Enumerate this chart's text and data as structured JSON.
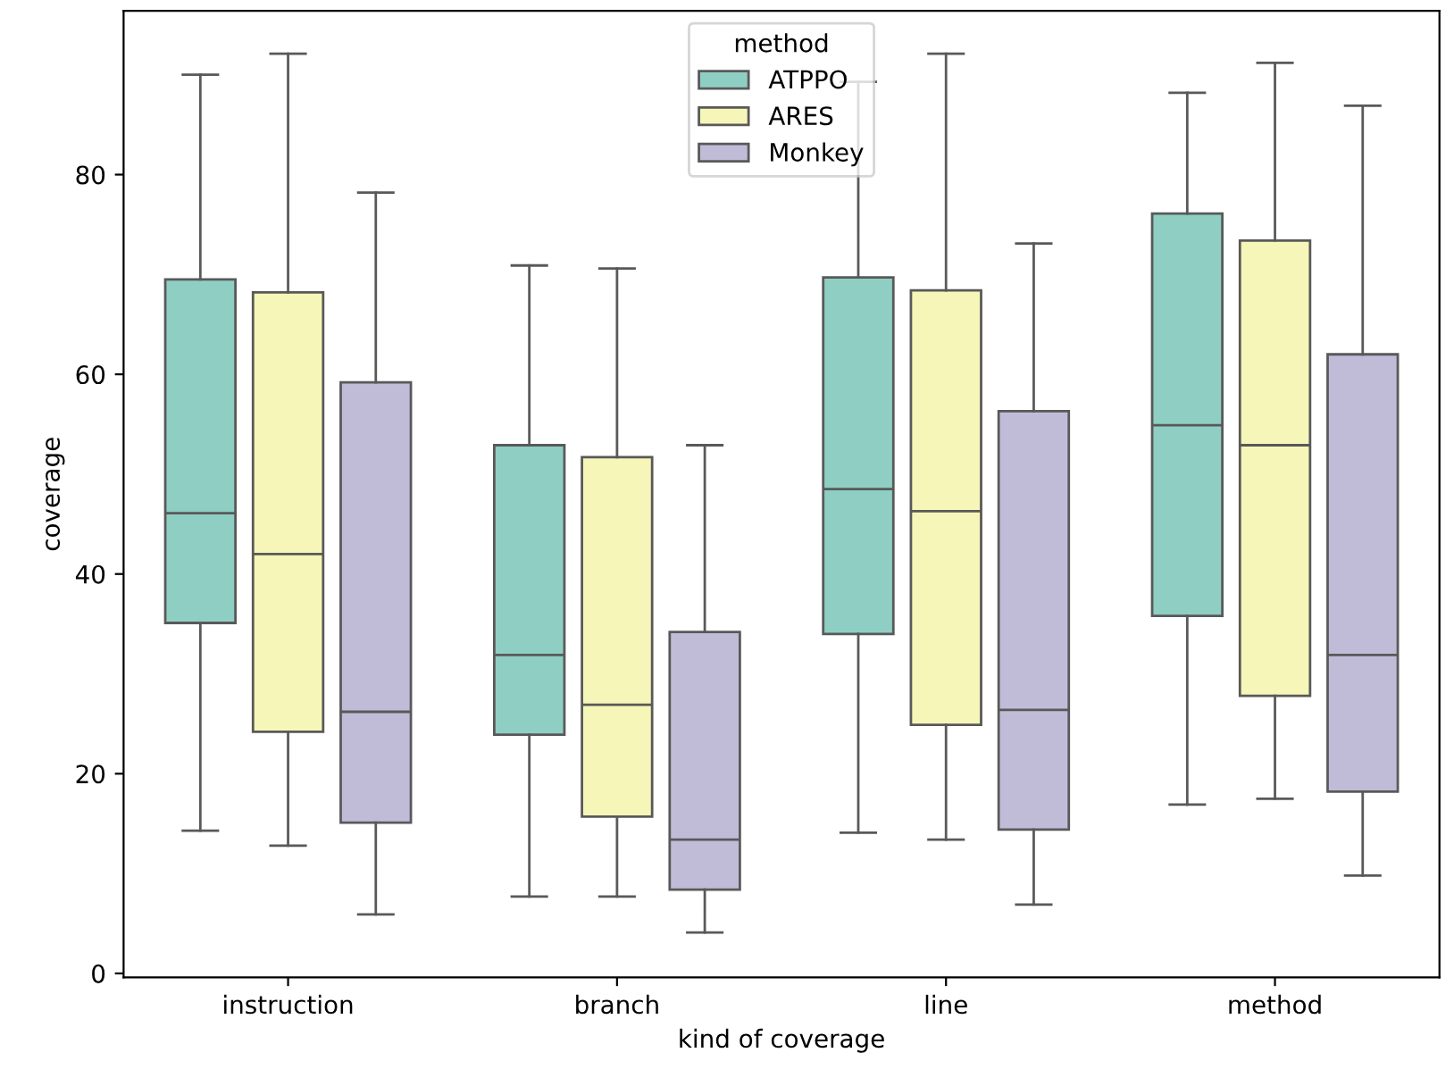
{
  "chart_data": {
    "type": "box",
    "xlabel": "kind of coverage",
    "ylabel": "coverage",
    "legend_title": "method",
    "legend": "top",
    "grid": false,
    "categories": [
      "instruction",
      "branch",
      "line",
      "method"
    ],
    "ylim": [
      -0.4,
      96.4
    ],
    "yticks": [
      0,
      20,
      40,
      60,
      80
    ],
    "series": [
      {
        "name": "ATPPO",
        "color": "#8fcfc3",
        "boxes": [
          {
            "low": 14.3,
            "q1": 35.1,
            "median": 46.1,
            "q3": 69.5,
            "high": 90.0
          },
          {
            "low": 7.7,
            "q1": 23.9,
            "median": 31.9,
            "q3": 52.9,
            "high": 70.9
          },
          {
            "low": 14.1,
            "q1": 34.0,
            "median": 48.5,
            "q3": 69.7,
            "high": 89.3
          },
          {
            "low": 16.9,
            "q1": 35.8,
            "median": 54.9,
            "q3": 76.1,
            "high": 88.2
          }
        ]
      },
      {
        "name": "ARES",
        "color": "#f6f6b9",
        "boxes": [
          {
            "low": 12.8,
            "q1": 24.2,
            "median": 42.0,
            "q3": 68.2,
            "high": 92.1
          },
          {
            "low": 7.7,
            "q1": 15.7,
            "median": 26.9,
            "q3": 51.7,
            "high": 70.6
          },
          {
            "low": 13.4,
            "q1": 24.9,
            "median": 46.3,
            "q3": 68.4,
            "high": 92.1
          },
          {
            "low": 17.5,
            "q1": 27.8,
            "median": 52.9,
            "q3": 73.4,
            "high": 91.2
          }
        ]
      },
      {
        "name": "Monkey",
        "color": "#c0bcd8",
        "boxes": [
          {
            "low": 5.9,
            "q1": 15.1,
            "median": 26.2,
            "q3": 59.2,
            "high": 78.2
          },
          {
            "low": 4.1,
            "q1": 8.4,
            "median": 13.4,
            "q3": 34.2,
            "high": 52.9
          },
          {
            "low": 6.9,
            "q1": 14.4,
            "median": 26.4,
            "q3": 56.3,
            "high": 73.1
          },
          {
            "low": 9.8,
            "q1": 18.2,
            "median": 31.9,
            "q3": 62.0,
            "high": 86.9
          }
        ]
      }
    ]
  }
}
